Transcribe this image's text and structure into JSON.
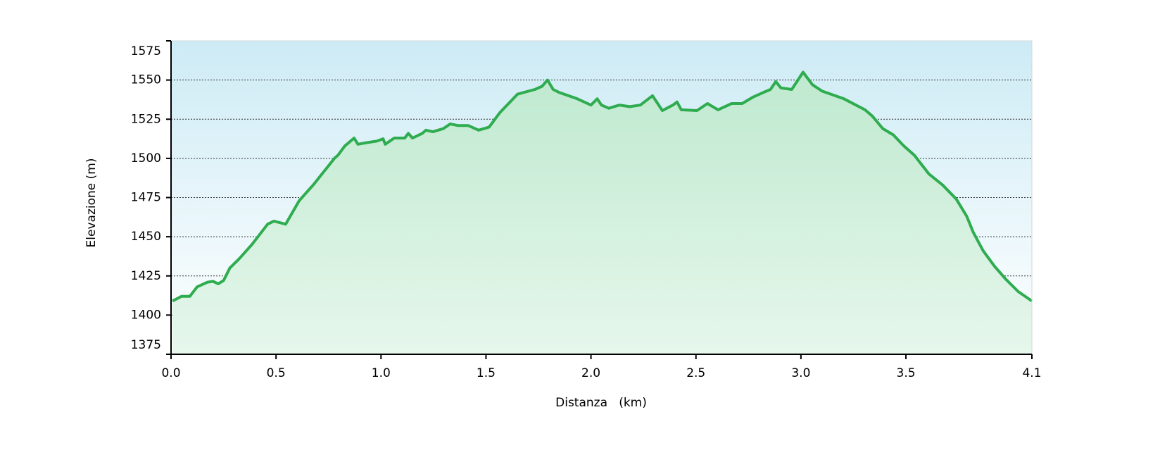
{
  "chart_data": {
    "type": "line",
    "x_label": "Distanza   (km)",
    "y_label": "Elevazione (m)",
    "x": [
      0.007,
      0.05,
      0.09,
      0.124,
      0.174,
      0.2,
      0.225,
      0.25,
      0.28,
      0.325,
      0.385,
      0.46,
      0.49,
      0.546,
      0.61,
      0.677,
      0.778,
      0.795,
      0.828,
      0.872,
      0.89,
      0.93,
      0.98,
      1.01,
      1.02,
      1.063,
      1.113,
      1.13,
      1.15,
      1.197,
      1.214,
      1.247,
      1.297,
      1.33,
      1.365,
      1.415,
      1.465,
      1.515,
      1.565,
      1.65,
      1.733,
      1.767,
      1.793,
      1.82,
      1.85,
      1.935,
      2.0,
      2.03,
      2.05,
      2.085,
      2.135,
      2.185,
      2.235,
      2.293,
      2.34,
      2.39,
      2.41,
      2.43,
      2.505,
      2.555,
      2.605,
      2.67,
      2.72,
      2.77,
      2.82,
      2.855,
      2.88,
      2.905,
      2.956,
      3.01,
      3.055,
      3.1,
      3.205,
      3.305,
      3.34,
      3.39,
      3.44,
      3.49,
      3.54,
      3.61,
      3.675,
      3.74,
      3.79,
      3.82,
      3.868,
      3.923,
      3.975,
      4.035,
      4.1
    ],
    "series": [
      {
        "color": "#2eac4f",
        "values": [
          1409,
          1412,
          1412,
          1418,
          1421,
          1421.5,
          1420,
          1422,
          1430,
          1436,
          1445,
          1458,
          1460,
          1458,
          1473,
          1483,
          1500,
          1502,
          1508,
          1513,
          1509,
          1510,
          1511,
          1512.5,
          1509,
          1513,
          1513,
          1516,
          1513,
          1516,
          1518,
          1517,
          1519,
          1522,
          1521,
          1521,
          1518,
          1520,
          1529,
          1541,
          1544,
          1546,
          1550,
          1544,
          1542,
          1538,
          1534,
          1538,
          1534,
          1532,
          1534,
          1533,
          1534,
          1540,
          1530.5,
          1534,
          1536,
          1531,
          1530.5,
          1535,
          1531,
          1535,
          1535,
          1539,
          1542,
          1544,
          1549,
          1545,
          1544,
          1555,
          1547,
          1543,
          1538,
          1531,
          1527,
          1519,
          1515,
          1508,
          1502,
          1490,
          1483,
          1474,
          1463,
          1453,
          1441,
          1431,
          1423,
          1415,
          1409
        ]
      }
    ],
    "xlim": [
      0,
      4.1
    ],
    "xticks": [
      {
        "value": 0,
        "label": "0.0"
      },
      0.5,
      {
        "value": 1,
        "label": "1.0"
      },
      1.5,
      {
        "value": 2,
        "label": "2.0"
      },
      2.5,
      {
        "value": 3,
        "label": "3.0"
      },
      3.5,
      4.1
    ],
    "ylim": [
      1375,
      1575
    ],
    "yticks": [
      1375,
      1400,
      1425,
      1450,
      1475,
      1500,
      1525,
      1550,
      1575
    ],
    "grid": true
  }
}
